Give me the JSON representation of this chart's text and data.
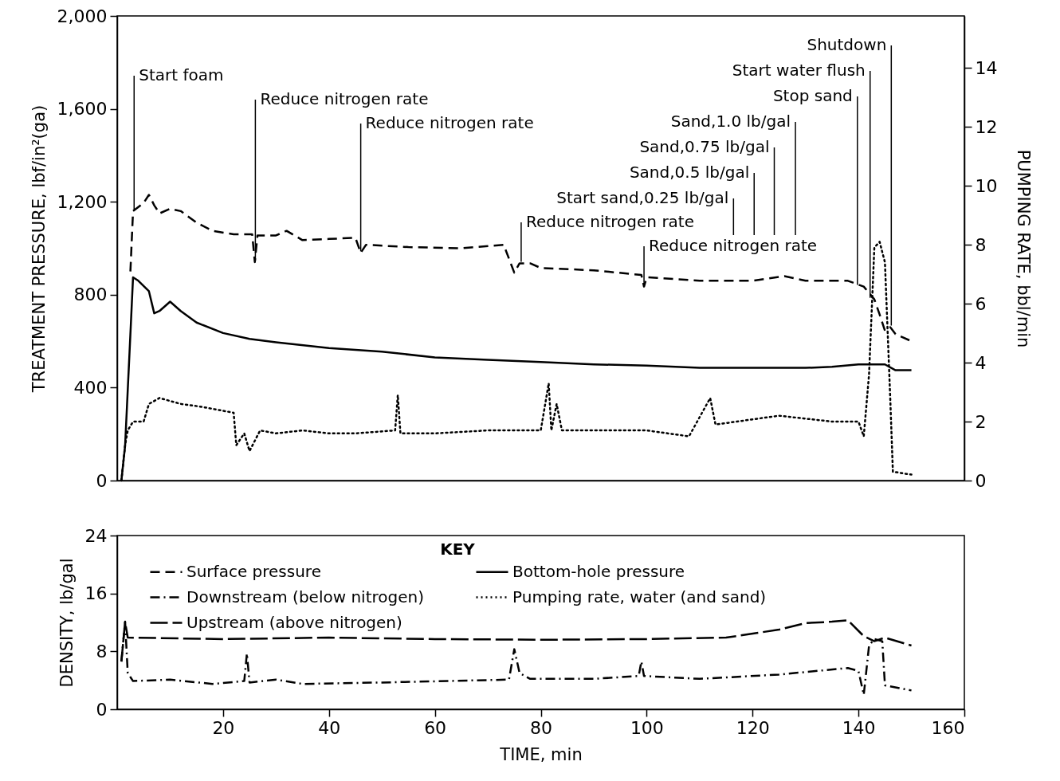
{
  "chart_data": [
    {
      "type": "line",
      "ylabel": "TREATMENT PRESSURE, lbf/in²(ga)",
      "y2label": "PUMPING RATE, bbl/min",
      "xlim": [
        0,
        160
      ],
      "ylim": [
        0,
        2000
      ],
      "yticks": [
        {
          "value": 2000,
          "label": "2,000"
        },
        {
          "value": 1600,
          "label": "1,600"
        },
        {
          "value": 1200,
          "label": "1,200"
        },
        800,
        400,
        0
      ],
      "y2lim": [
        0,
        15.76
      ],
      "y2ticks": [
        0,
        2,
        4,
        6,
        8,
        10,
        12,
        14
      ],
      "tick_labels": "y",
      "grid": false,
      "series": [
        {
          "name": "Surface pressure",
          "color": "#000000",
          "line_style": "dashed",
          "x": [
            2.5,
            3,
            5,
            6,
            7,
            8,
            10,
            12,
            15,
            18,
            22,
            25.5,
            26,
            26.5,
            30,
            32,
            35,
            40,
            45,
            46,
            47,
            55,
            65,
            73,
            75,
            76,
            78,
            80,
            90,
            99,
            99.5,
            100,
            110,
            120,
            126,
            130,
            138,
            141,
            143,
            144,
            145,
            146,
            147,
            150
          ],
          "values": [
            900,
            1160,
            1195,
            1230,
            1185,
            1150,
            1170,
            1160,
            1110,
            1075,
            1060,
            1060,
            940,
            1055,
            1055,
            1075,
            1035,
            1040,
            1045,
            980,
            1015,
            1005,
            1000,
            1015,
            895,
            935,
            935,
            915,
            905,
            885,
            835,
            875,
            860,
            860,
            880,
            860,
            860,
            835,
            780,
            715,
            645,
            660,
            630,
            600
          ]
        },
        {
          "name": "Bottom-hole pressure",
          "color": "#000000",
          "line_style": "solid",
          "x": [
            0.8,
            1.5,
            2.5,
            3,
            4,
            6,
            7,
            8,
            10,
            12,
            15,
            20,
            25,
            30,
            40,
            50,
            60,
            70,
            80,
            90,
            100,
            110,
            120,
            130,
            135,
            140,
            145,
            147,
            150
          ],
          "values": [
            0,
            150,
            630,
            875,
            860,
            815,
            720,
            730,
            770,
            730,
            680,
            635,
            610,
            595,
            570,
            555,
            530,
            520,
            510,
            500,
            495,
            485,
            485,
            485,
            490,
            500,
            500,
            475,
            475
          ]
        },
        {
          "name": "Pumping rate, water (and sand)",
          "color": "#000000",
          "line_style": "dotted",
          "axis": "y2",
          "x": [
            0.8,
            1.5,
            2,
            3,
            5,
            6,
            8,
            12,
            16,
            22,
            22.5,
            24,
            25,
            27,
            30,
            35,
            40,
            45,
            52.5,
            53,
            53.5,
            60,
            70,
            80,
            81.5,
            82,
            83,
            84,
            90,
            100,
            108,
            112,
            113,
            125,
            135,
            140,
            141,
            142,
            143,
            144,
            145,
            146,
            146.5,
            150
          ],
          "values": [
            0,
            1.2,
            1.7,
            2.0,
            2.0,
            2.6,
            2.8,
            2.6,
            2.5,
            2.3,
            1.2,
            1.6,
            1.0,
            1.7,
            1.6,
            1.7,
            1.6,
            1.6,
            1.7,
            2.9,
            1.6,
            1.6,
            1.7,
            1.7,
            3.3,
            1.7,
            2.6,
            1.7,
            1.7,
            1.7,
            1.5,
            2.8,
            1.9,
            2.2,
            2.0,
            2.0,
            1.5,
            3.6,
            7.9,
            8.1,
            7.4,
            2.8,
            0.3,
            0.2
          ]
        }
      ],
      "ref_lines": [
        {
          "axis": "x",
          "value": 3.2,
          "label": "Start foam"
        },
        {
          "axis": "x",
          "value": 26.1,
          "label": "Reduce nitrogen rate"
        },
        {
          "axis": "x",
          "value": 46,
          "label": "Reduce nitrogen rate"
        },
        {
          "axis": "x",
          "value": 76.3,
          "label": "Reduce nitrogen rate"
        },
        {
          "axis": "x",
          "value": 99.5,
          "label": "Reduce nitrogen rate"
        },
        {
          "axis": "x",
          "value": 116.4,
          "label": "Start sand,0.25 lb/gal"
        },
        {
          "axis": "x",
          "value": 120.3,
          "label": "Sand,0.5 lb/gal"
        },
        {
          "axis": "x",
          "value": 124.1,
          "label": "Sand,0.75 lb/gal"
        },
        {
          "axis": "x",
          "value": 128.1,
          "label": "Sand,1.0 lb/gal"
        },
        {
          "axis": "x",
          "value": 139.8,
          "label": "Stop sand"
        },
        {
          "axis": "x",
          "value": 142.2,
          "label": "Start water flush"
        },
        {
          "axis": "x",
          "value": 146.2,
          "label": "Shutdown"
        }
      ]
    },
    {
      "type": "line",
      "xlabel": "TIME, min",
      "ylabel": "DENSITY, lb/gal",
      "legend_title": "KEY",
      "legend": "top left",
      "xlim": [
        0,
        160
      ],
      "xticks": [
        20,
        40,
        60,
        80,
        100,
        120,
        140,
        160
      ],
      "ylim": [
        0,
        24
      ],
      "yticks": [
        0,
        8,
        16,
        24
      ],
      "grid": false,
      "series": [
        {
          "name": "Downstream (below nitrogen)",
          "color": "#000000",
          "line_style": "dashdot",
          "x": [
            0.8,
            1.5,
            2,
            3,
            10,
            18,
            24,
            24.5,
            25,
            30,
            35,
            50,
            74,
            75,
            76,
            78,
            90,
            98.5,
            99,
            99.5,
            110,
            125,
            138,
            140,
            141,
            142,
            143,
            144.5,
            145,
            150
          ],
          "values": [
            6.6,
            12.1,
            5.0,
            3.9,
            4.1,
            3.5,
            3.9,
            7.7,
            3.7,
            4.1,
            3.5,
            3.7,
            4.1,
            8.3,
            5.0,
            4.2,
            4.2,
            4.6,
            6.6,
            4.6,
            4.2,
            4.8,
            5.7,
            5.3,
            2.0,
            8.8,
            9.7,
            9.4,
            3.3,
            2.6
          ]
        },
        {
          "name": "Upstream (above nitrogen)",
          "color": "#000000",
          "line_style": "longdash",
          "x": [
            0.8,
            1.5,
            2,
            20,
            40,
            60,
            80,
            100,
            115,
            125,
            130,
            135,
            138,
            141,
            143,
            145,
            150
          ],
          "values": [
            6.6,
            12.1,
            9.9,
            9.7,
            9.9,
            9.7,
            9.6,
            9.7,
            9.9,
            11.0,
            11.9,
            12.1,
            12.3,
            10.1,
            9.4,
            9.9,
            8.8
          ]
        }
      ]
    }
  ]
}
